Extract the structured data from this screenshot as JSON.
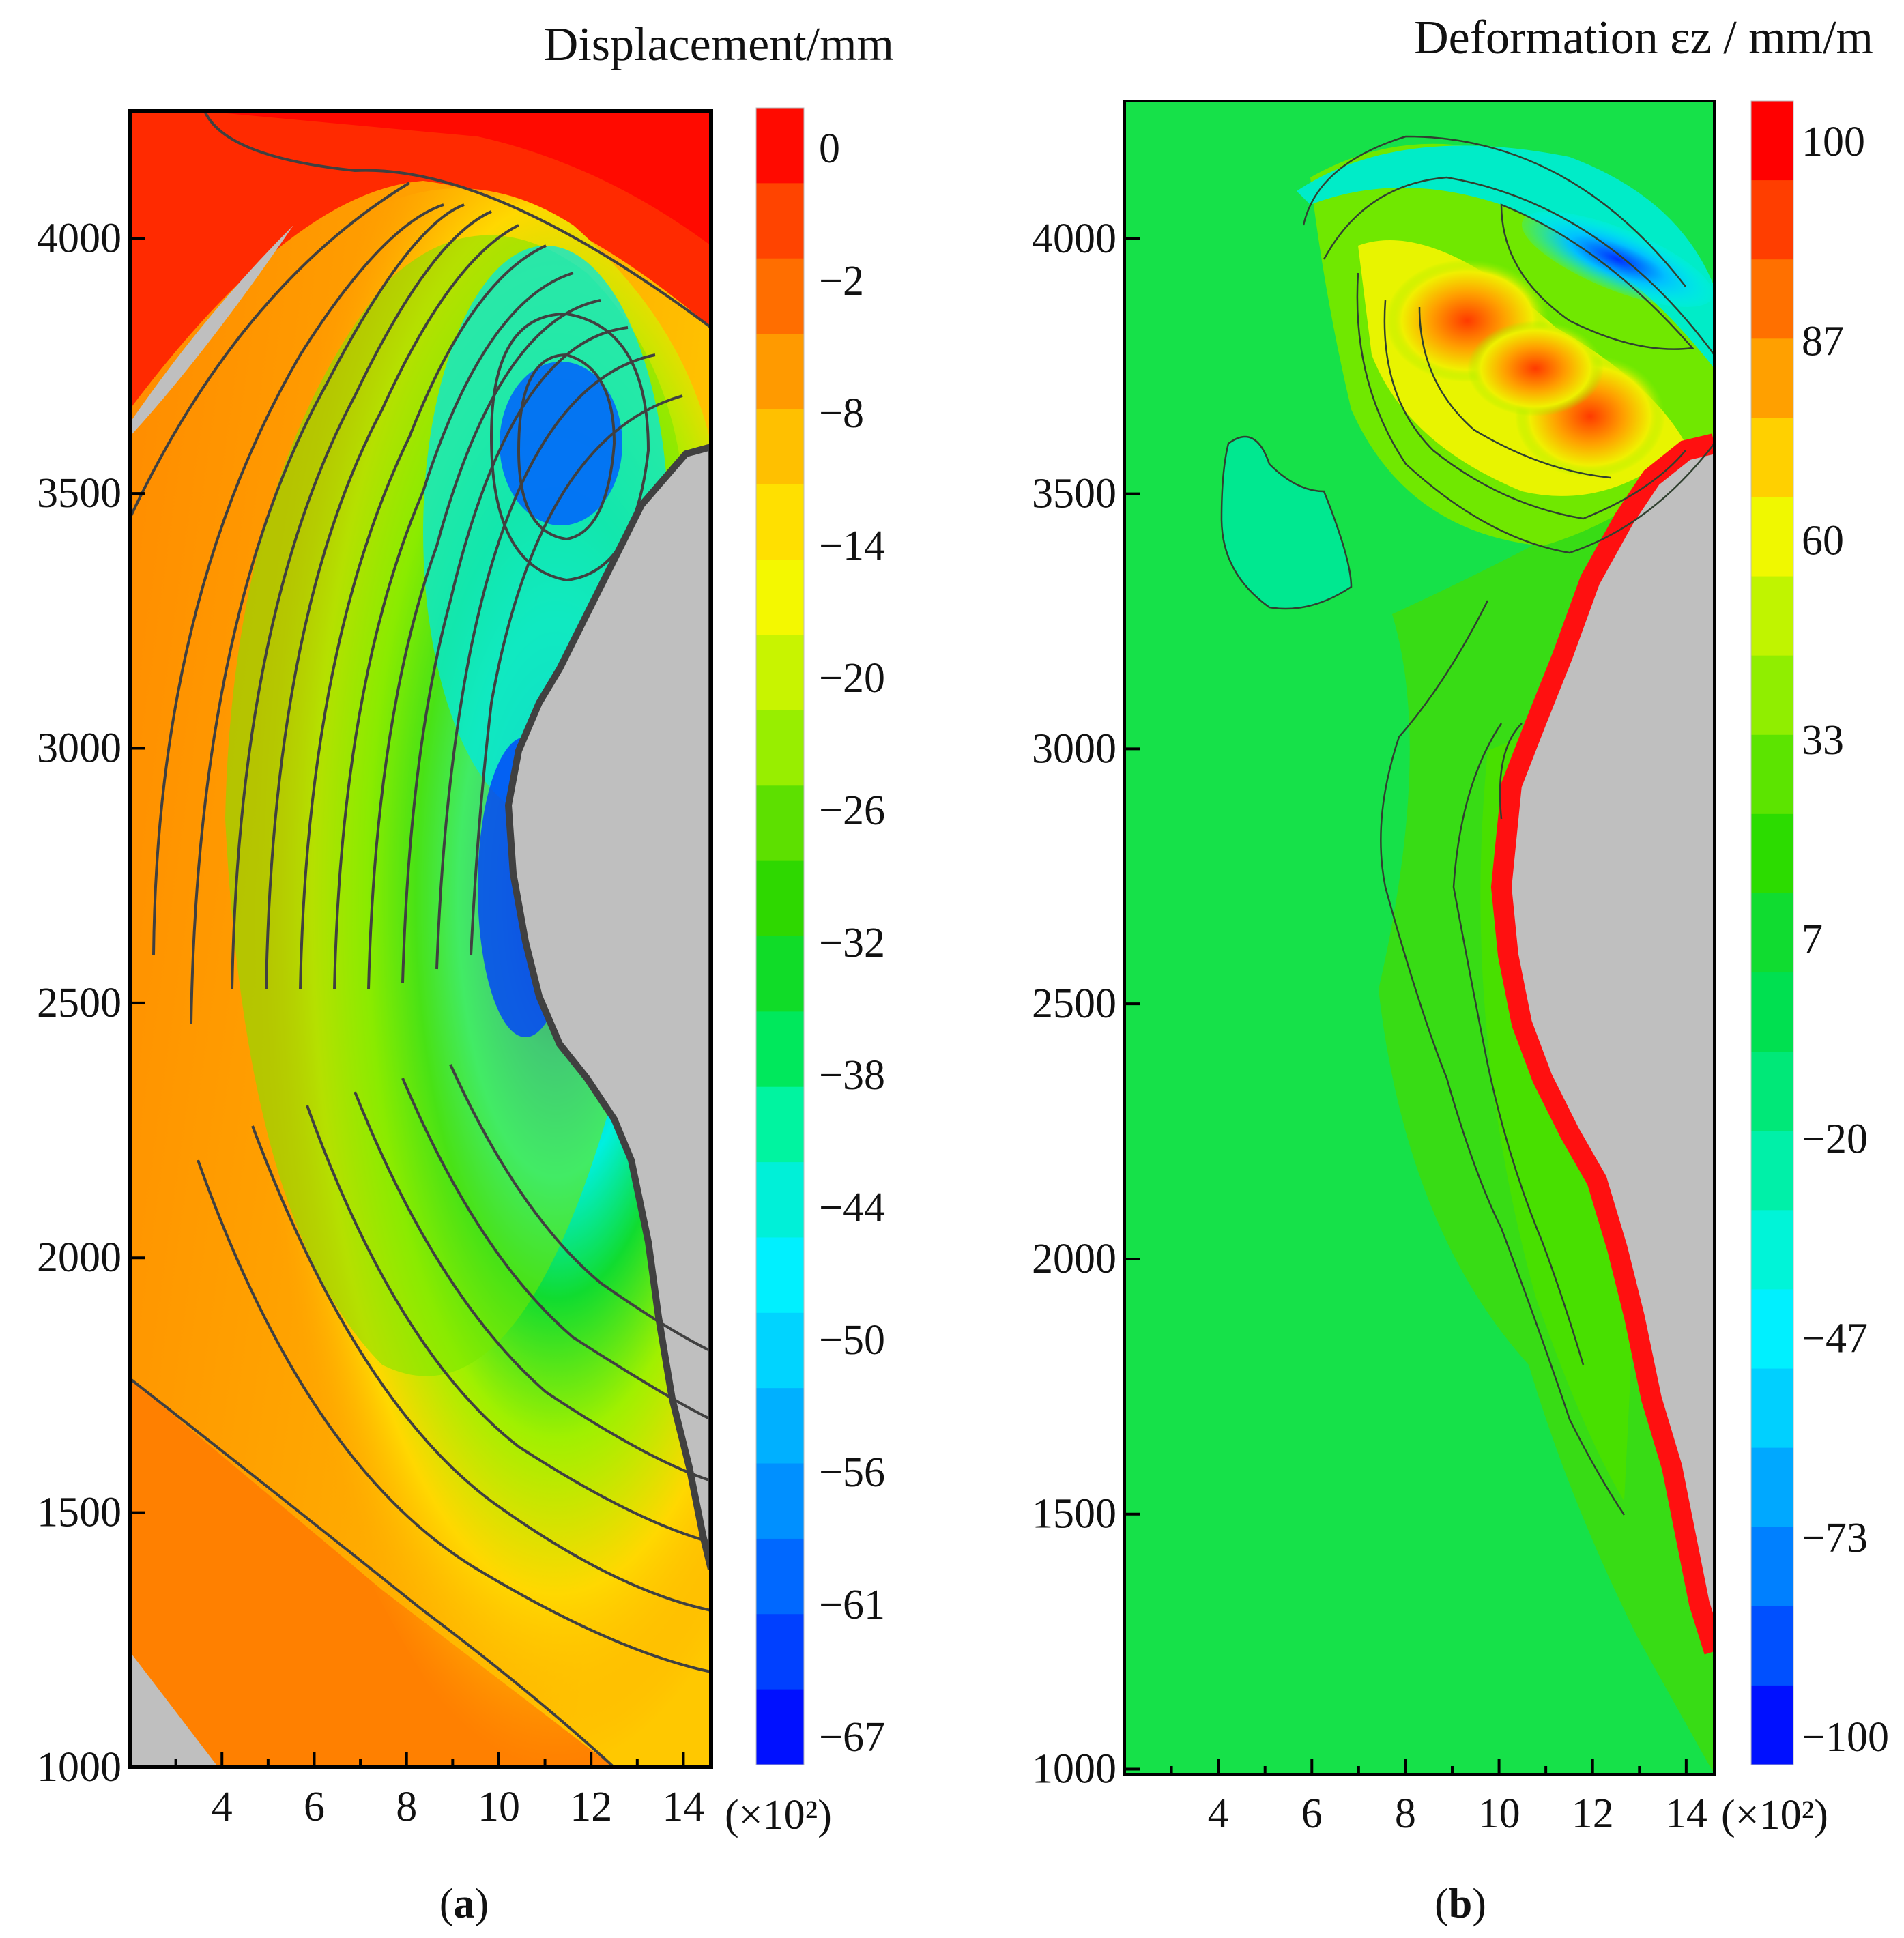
{
  "chart_data": [
    {
      "type": "heatmap",
      "panel_label": "a",
      "colorbar_title": "Displacement/mm",
      "x_ticks": [
        4,
        6,
        8,
        10,
        12,
        14
      ],
      "x_multiplier": "(×10²)",
      "xlim": [
        2.0,
        14.6
      ],
      "y_ticks": [
        1000,
        1500,
        2000,
        2500,
        3000,
        3500,
        4000
      ],
      "ylim": [
        1000,
        4250
      ],
      "colorbar_ticks": [
        "0",
        "−2",
        "−8",
        "−14",
        "−20",
        "−26",
        "−32",
        "−38",
        "−44",
        "−50",
        "−56",
        "−61",
        "−67"
      ],
      "colorbar_colors": [
        "#ff0a00",
        "#ff4400",
        "#ff6e00",
        "#ff9a00",
        "#ffc000",
        "#ffe000",
        "#f4f800",
        "#c8f400",
        "#98ee00",
        "#5de000",
        "#2ed800",
        "#10dc28",
        "#00e85c",
        "#00f4a0",
        "#00f0d8",
        "#00f0ff",
        "#00d4ff",
        "#00b0ff",
        "#0090ff",
        "#0068ff",
        "#0040ff",
        "#0010ff"
      ],
      "grid": false,
      "legend": "right"
    },
    {
      "type": "heatmap",
      "panel_label": "b",
      "colorbar_title": "Deformation εz / mm/m",
      "x_ticks": [
        4,
        6,
        8,
        10,
        12,
        14
      ],
      "x_multiplier": "(×10²)",
      "xlim": [
        2.0,
        14.6
      ],
      "y_ticks": [
        1000,
        1500,
        2000,
        2500,
        3000,
        3500,
        4000
      ],
      "ylim": [
        990,
        4270
      ],
      "colorbar_ticks": [
        "100",
        "87",
        "60",
        "33",
        "7",
        "−20",
        "−47",
        "−73",
        "−100"
      ],
      "colorbar_colors": [
        "#ff0000",
        "#ff3e00",
        "#ff7000",
        "#ffa000",
        "#ffd000",
        "#f0f800",
        "#c0f400",
        "#90ee00",
        "#5ce400",
        "#2cdc00",
        "#10dc30",
        "#00e050",
        "#00e878",
        "#00f0a8",
        "#00f4d8",
        "#00f0ff",
        "#00d0ff",
        "#00a8ff",
        "#0080ff",
        "#0050ff",
        "#0010ff"
      ],
      "grid": false,
      "legend": "right"
    }
  ]
}
